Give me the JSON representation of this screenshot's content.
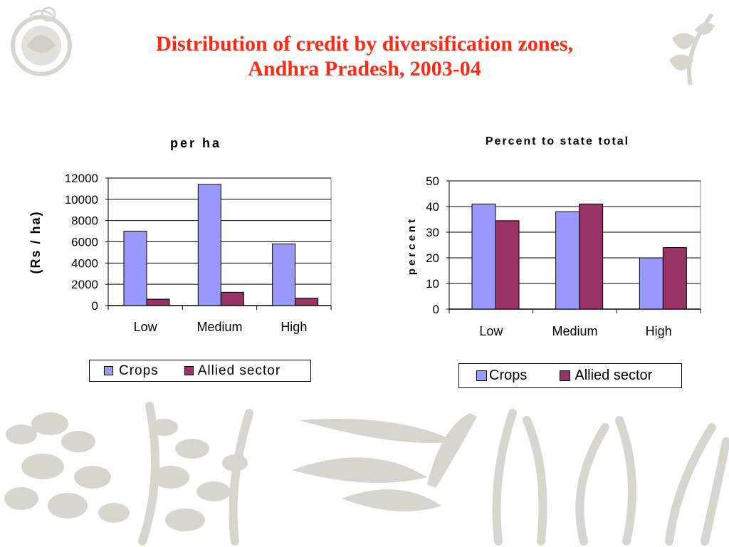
{
  "slide": {
    "title_line1": "Distribution of credit by diversification zones,",
    "title_line2": "Andhra Pradesh, 2003-04"
  },
  "colors": {
    "title": "#ff2a14",
    "crops": "#9999ff",
    "allied": "#993366",
    "decoration": "#d6d6cc"
  },
  "icons": [
    "emblem-logo",
    "wheat-logo",
    "plant-silhouettes"
  ],
  "chart_data": [
    {
      "type": "bar",
      "title": "per ha",
      "xlabel": "",
      "ylabel": "(Rs / ha)",
      "categories": [
        "Low",
        "Medium",
        "High"
      ],
      "series": [
        {
          "name": "Crops",
          "values": [
            7000,
            11400,
            5800
          ]
        },
        {
          "name": "Allied sector",
          "values": [
            600,
            1250,
            700
          ]
        }
      ],
      "ylim": [
        0,
        12000
      ],
      "yticks": [
        "12000",
        "10000",
        "8000",
        "6000",
        "4000",
        "2000",
        "0"
      ],
      "grid": true,
      "legend": "bottom"
    },
    {
      "type": "bar",
      "title": "Percent to state total",
      "xlabel": "",
      "ylabel": "percent",
      "categories": [
        "Low",
        "Medium",
        "High"
      ],
      "series": [
        {
          "name": "Crops",
          "values": [
            41,
            38,
            20
          ]
        },
        {
          "name": "Allied sector",
          "values": [
            34.5,
            41,
            24
          ]
        }
      ],
      "ylim": [
        0,
        50
      ],
      "yticks": [
        "50",
        "40",
        "30",
        "20",
        "10",
        "0"
      ],
      "grid": true,
      "legend": "bottom"
    }
  ]
}
